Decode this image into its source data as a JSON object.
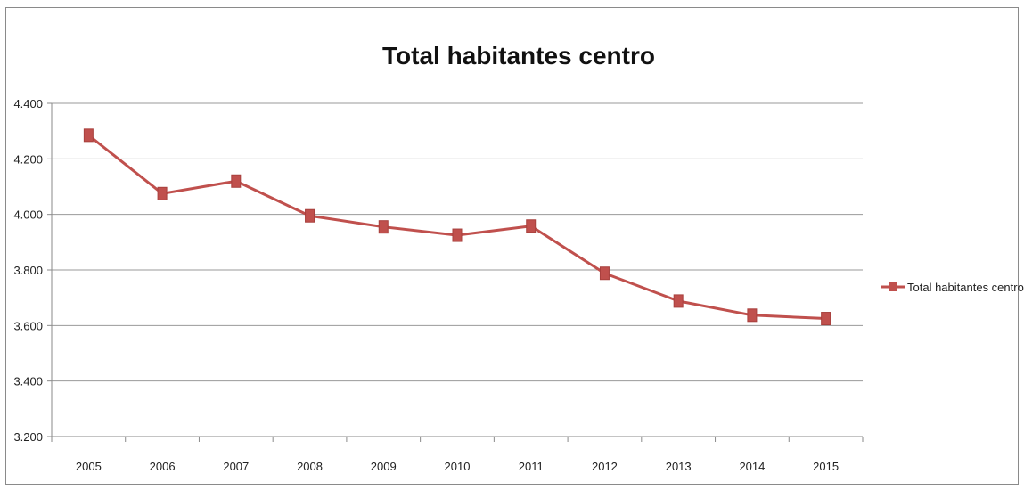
{
  "chart_data": {
    "type": "line",
    "title": "Total habitantes centro",
    "xlabel": "",
    "ylabel": "",
    "categories": [
      "2005",
      "2006",
      "2007",
      "2008",
      "2009",
      "2010",
      "2011",
      "2012",
      "2013",
      "2014",
      "2015"
    ],
    "series": [
      {
        "name": "Total habitantes centro",
        "values": [
          4285,
          4075,
          4120,
          3995,
          3955,
          3925,
          3958,
          3788,
          3688,
          3637,
          3625
        ]
      }
    ],
    "ylim": [
      3200,
      4400
    ],
    "yticks": [
      3200,
      3400,
      3600,
      3800,
      4000,
      4200,
      4400
    ],
    "ytick_labels": [
      "3.200",
      "3.400",
      "3.600",
      "3.800",
      "4.000",
      "4.200",
      "4.400"
    ],
    "grid": "horizontal",
    "legend_position": "right",
    "series_color": "#c0504d",
    "marker": "square"
  }
}
